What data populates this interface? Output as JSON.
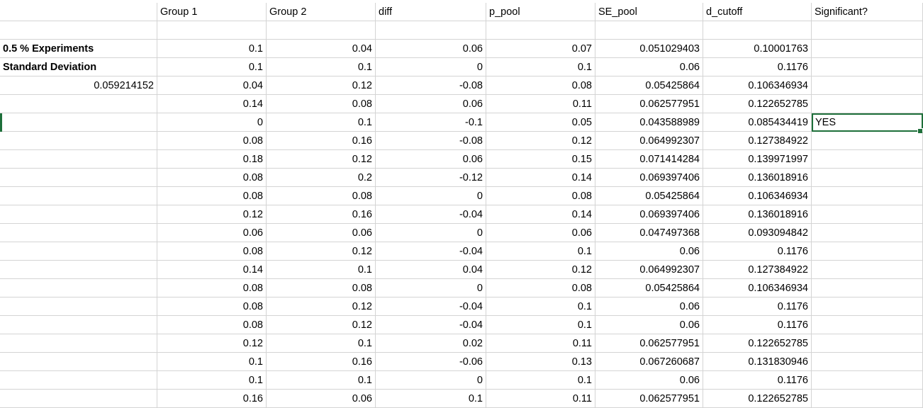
{
  "sheet": {
    "headers": [
      "",
      "Group 1",
      "Group 2",
      "diff",
      "p_pool",
      "SE_pool",
      "d_cutoff",
      "Significant?"
    ],
    "labels": {
      "experiments": "0.5 % Experiments",
      "std_dev_label": "Standard Deviation",
      "std_dev_value": "0.059214152"
    },
    "rows": [
      {
        "g1": "0.1",
        "g2": "0.04",
        "diff": "0.06",
        "p": "0.07",
        "se": "0.051029403",
        "d": "0.10001763",
        "sig": ""
      },
      {
        "g1": "0.1",
        "g2": "0.1",
        "diff": "0",
        "p": "0.1",
        "se": "0.06",
        "d": "0.1176",
        "sig": ""
      },
      {
        "g1": "0.04",
        "g2": "0.12",
        "diff": "-0.08",
        "p": "0.08",
        "se": "0.05425864",
        "d": "0.106346934",
        "sig": ""
      },
      {
        "g1": "0.14",
        "g2": "0.08",
        "diff": "0.06",
        "p": "0.11",
        "se": "0.062577951",
        "d": "0.122652785",
        "sig": ""
      },
      {
        "g1": "0",
        "g2": "0.1",
        "diff": "-0.1",
        "p": "0.05",
        "se": "0.043588989",
        "d": "0.085434419",
        "sig": "YES"
      },
      {
        "g1": "0.08",
        "g2": "0.16",
        "diff": "-0.08",
        "p": "0.12",
        "se": "0.064992307",
        "d": "0.127384922",
        "sig": ""
      },
      {
        "g1": "0.18",
        "g2": "0.12",
        "diff": "0.06",
        "p": "0.15",
        "se": "0.071414284",
        "d": "0.139971997",
        "sig": ""
      },
      {
        "g1": "0.08",
        "g2": "0.2",
        "diff": "-0.12",
        "p": "0.14",
        "se": "0.069397406",
        "d": "0.136018916",
        "sig": ""
      },
      {
        "g1": "0.08",
        "g2": "0.08",
        "diff": "0",
        "p": "0.08",
        "se": "0.05425864",
        "d": "0.106346934",
        "sig": ""
      },
      {
        "g1": "0.12",
        "g2": "0.16",
        "diff": "-0.04",
        "p": "0.14",
        "se": "0.069397406",
        "d": "0.136018916",
        "sig": ""
      },
      {
        "g1": "0.06",
        "g2": "0.06",
        "diff": "0",
        "p": "0.06",
        "se": "0.047497368",
        "d": "0.093094842",
        "sig": ""
      },
      {
        "g1": "0.08",
        "g2": "0.12",
        "diff": "-0.04",
        "p": "0.1",
        "se": "0.06",
        "d": "0.1176",
        "sig": ""
      },
      {
        "g1": "0.14",
        "g2": "0.1",
        "diff": "0.04",
        "p": "0.12",
        "se": "0.064992307",
        "d": "0.127384922",
        "sig": ""
      },
      {
        "g1": "0.08",
        "g2": "0.08",
        "diff": "0",
        "p": "0.08",
        "se": "0.05425864",
        "d": "0.106346934",
        "sig": ""
      },
      {
        "g1": "0.08",
        "g2": "0.12",
        "diff": "-0.04",
        "p": "0.1",
        "se": "0.06",
        "d": "0.1176",
        "sig": ""
      },
      {
        "g1": "0.08",
        "g2": "0.12",
        "diff": "-0.04",
        "p": "0.1",
        "se": "0.06",
        "d": "0.1176",
        "sig": ""
      },
      {
        "g1": "0.12",
        "g2": "0.1",
        "diff": "0.02",
        "p": "0.11",
        "se": "0.062577951",
        "d": "0.122652785",
        "sig": ""
      },
      {
        "g1": "0.1",
        "g2": "0.16",
        "diff": "-0.06",
        "p": "0.13",
        "se": "0.067260687",
        "d": "0.131830946",
        "sig": ""
      },
      {
        "g1": "0.1",
        "g2": "0.1",
        "diff": "0",
        "p": "0.1",
        "se": "0.06",
        "d": "0.1176",
        "sig": ""
      },
      {
        "g1": "0.16",
        "g2": "0.06",
        "diff": "0.1",
        "p": "0.11",
        "se": "0.062577951",
        "d": "0.122652785",
        "sig": ""
      }
    ],
    "selection": {
      "row": 4,
      "col": "sig"
    },
    "accent_color": "#1e6f3a"
  }
}
